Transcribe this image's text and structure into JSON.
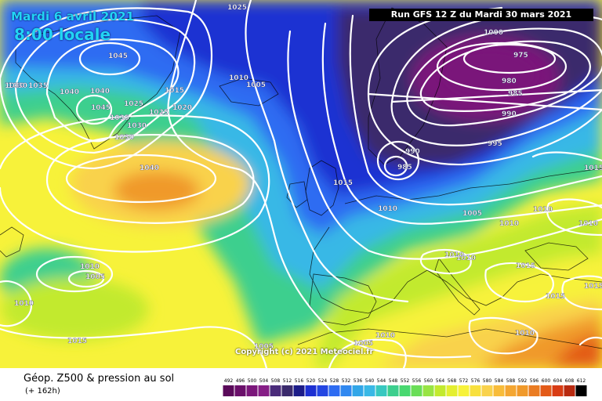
{
  "header": {
    "date": "Mardi 6 avril 2021",
    "time": "8:00 locale",
    "run": "Run GFS 12 Z du Mardi 30 mars 2021"
  },
  "copyright": "Copyright (c) 2021 Meteociel.fr",
  "footer": {
    "title": "Géop. Z500 & pression au sol",
    "subtitle": "(+ 162h)"
  },
  "colors": {
    "low_core": "#7a167a",
    "low_ring": "#3a2a6c",
    "deep_blue": "#1d30d2",
    "blue": "#2e6cf2",
    "cyan": "#39b8e6",
    "green": "#3ccf8e",
    "yellow_green": "#c2ea2e",
    "yellow": "#f7f23a",
    "light_orange": "#f9d24c",
    "orange": "#f0992a",
    "red_orange": "#e35a18"
  },
  "scale_labels": [
    "492",
    "496",
    "500",
    "504",
    "508",
    "512",
    "516",
    "520",
    "524",
    "528",
    "532",
    "536",
    "540",
    "544",
    "548",
    "552",
    "556",
    "560",
    "564",
    "568",
    "572",
    "576",
    "580",
    "584",
    "588",
    "592",
    "596",
    "600",
    "604",
    "608",
    "612"
  ],
  "scale_colors": [
    "#5a0a5a",
    "#6a0f6a",
    "#7a167a",
    "#861e86",
    "#4a2b7a",
    "#3a2a6c",
    "#1c1c88",
    "#1d30d2",
    "#2446e2",
    "#2e6cf2",
    "#3088f0",
    "#32a6e8",
    "#39b8e6",
    "#38c8c0",
    "#3ccf8e",
    "#48d870",
    "#6ade58",
    "#98e444",
    "#c2ea2e",
    "#e4ef30",
    "#f7f23a",
    "#f8e03e",
    "#f9d24c",
    "#f8bc3a",
    "#f4a632",
    "#f0992a",
    "#ea7c22",
    "#e35a18",
    "#d83c14",
    "#b82a10",
    "#000000"
  ],
  "pressure_labels": [
    "1025",
    "1045",
    "1035",
    "1040",
    "1030",
    "1040",
    "1025",
    "1045",
    "1035",
    "1030",
    "1030",
    "1025",
    "1020",
    "1015",
    "1010",
    "1005",
    "1000",
    "975",
    "980",
    "985",
    "990",
    "995",
    "990",
    "985",
    "1040",
    "1015",
    "1010",
    "1005",
    "1010",
    "1010",
    "1010",
    "1015",
    "1010",
    "1010",
    "1005",
    "1015",
    "1015",
    "1005",
    "1010",
    "1005",
    "1015",
    "1010",
    "1010",
    "1010",
    "1015",
    "1030"
  ]
}
